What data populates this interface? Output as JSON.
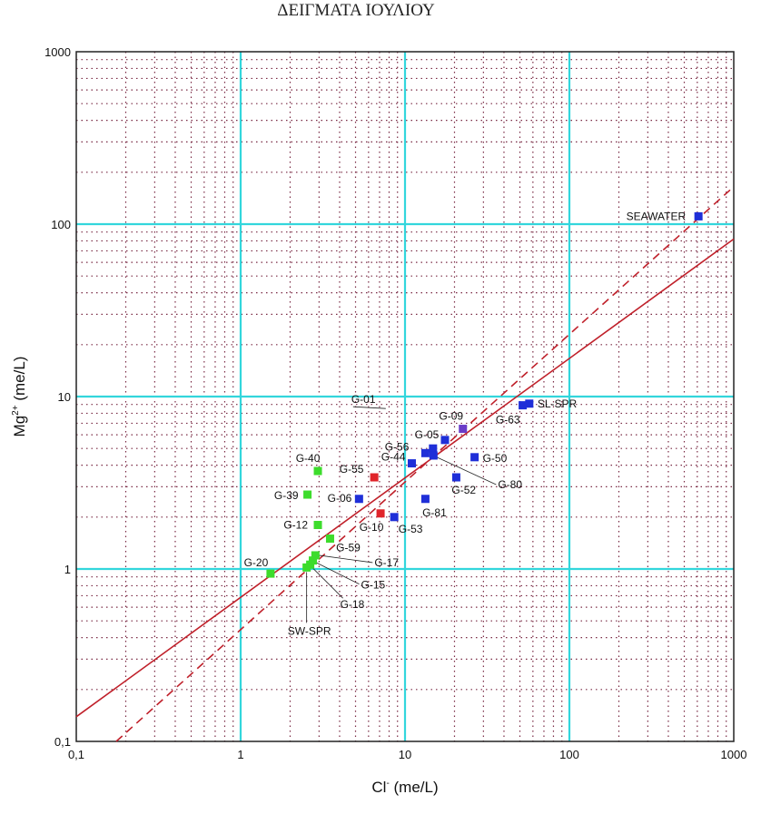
{
  "chart_data": {
    "type": "scatter",
    "title": "ΔΕΙΓΜΑΤΑ ΙΟΥΛΙΟΥ",
    "xlabel": "Cl",
    "xlabel_sup": "-",
    "xlabel_unit": " (me/L)",
    "ylabel": "Mg",
    "ylabel_sup": "2+",
    "ylabel_unit": " (me/L)",
    "x_scale": "log",
    "y_scale": "log",
    "xlim": [
      0.1,
      1000
    ],
    "ylim": [
      0.1,
      1000
    ],
    "x_tick_values": [
      0.1,
      1,
      10,
      100,
      1000
    ],
    "x_tick_labels": [
      "0,1",
      "1",
      "10",
      "100",
      "1000"
    ],
    "y_tick_values": [
      0.1,
      1,
      10,
      100,
      1000
    ],
    "y_tick_labels": [
      "0,1",
      "1",
      "10",
      "100",
      "1000"
    ],
    "grid": true,
    "colors": {
      "major_grid": "#33d6dc",
      "minor_grid": "#7a2a44",
      "line": "#c0202a",
      "blue": "#1f2fd8",
      "green": "#3ddc2c",
      "red": "#e0242a",
      "purple": "#6a3cc8"
    },
    "lines": [
      {
        "style": "solid",
        "points": [
          [
            0.1,
            0.139
          ],
          [
            1000,
            82
          ]
        ]
      },
      {
        "style": "dashed",
        "points": [
          [
            0.175,
            0.1
          ],
          [
            1000,
            165
          ]
        ]
      }
    ],
    "points": [
      {
        "label": "SEAWATER",
        "x": 610,
        "y": 111,
        "color": "blue"
      },
      {
        "label": "SL-SPR",
        "x": 57,
        "y": 9.1,
        "color": "blue"
      },
      {
        "label": "G-63",
        "x": 52,
        "y": 8.9,
        "color": "blue"
      },
      {
        "label": "G-09",
        "x": 22.5,
        "y": 6.5,
        "color": "purple"
      },
      {
        "label": "G-05",
        "x": 17.5,
        "y": 5.6,
        "color": "blue"
      },
      {
        "label": "G-01",
        "x": 14.8,
        "y": 5.0,
        "color": "blue"
      },
      {
        "label": "G-56",
        "x": 13.3,
        "y": 4.7,
        "color": "blue"
      },
      {
        "label": "G-80",
        "x": 14.9,
        "y": 4.55,
        "color": "blue"
      },
      {
        "label": "G-50",
        "x": 26.5,
        "y": 4.45,
        "color": "blue"
      },
      {
        "label": "G-44",
        "x": 11,
        "y": 4.1,
        "color": "blue"
      },
      {
        "label": "G-52",
        "x": 20.5,
        "y": 3.4,
        "color": "blue"
      },
      {
        "label": "G-55",
        "x": 6.5,
        "y": 3.4,
        "color": "red"
      },
      {
        "label": "G-40",
        "x": 2.95,
        "y": 3.7,
        "color": "green"
      },
      {
        "label": "G-39",
        "x": 2.55,
        "y": 2.7,
        "color": "green"
      },
      {
        "label": "G-06",
        "x": 5.25,
        "y": 2.55,
        "color": "blue"
      },
      {
        "label": "G-81",
        "x": 13.3,
        "y": 2.55,
        "color": "blue"
      },
      {
        "label": "G-10",
        "x": 7.1,
        "y": 2.1,
        "color": "red"
      },
      {
        "label": "G-53",
        "x": 8.6,
        "y": 2.0,
        "color": "blue"
      },
      {
        "label": "G-12",
        "x": 2.95,
        "y": 1.8,
        "color": "green"
      },
      {
        "label": "G-59",
        "x": 3.5,
        "y": 1.5,
        "color": "green"
      },
      {
        "label": "G-17",
        "x": 2.85,
        "y": 1.2,
        "color": "green"
      },
      {
        "label": "G-15",
        "x": 2.75,
        "y": 1.12,
        "color": "green"
      },
      {
        "label": "G-18",
        "x": 2.65,
        "y": 1.06,
        "color": "green"
      },
      {
        "label": "SW-SPR",
        "x": 2.52,
        "y": 1.02,
        "color": "green"
      },
      {
        "label": "G-20",
        "x": 1.52,
        "y": 0.94,
        "color": "green"
      }
    ]
  }
}
